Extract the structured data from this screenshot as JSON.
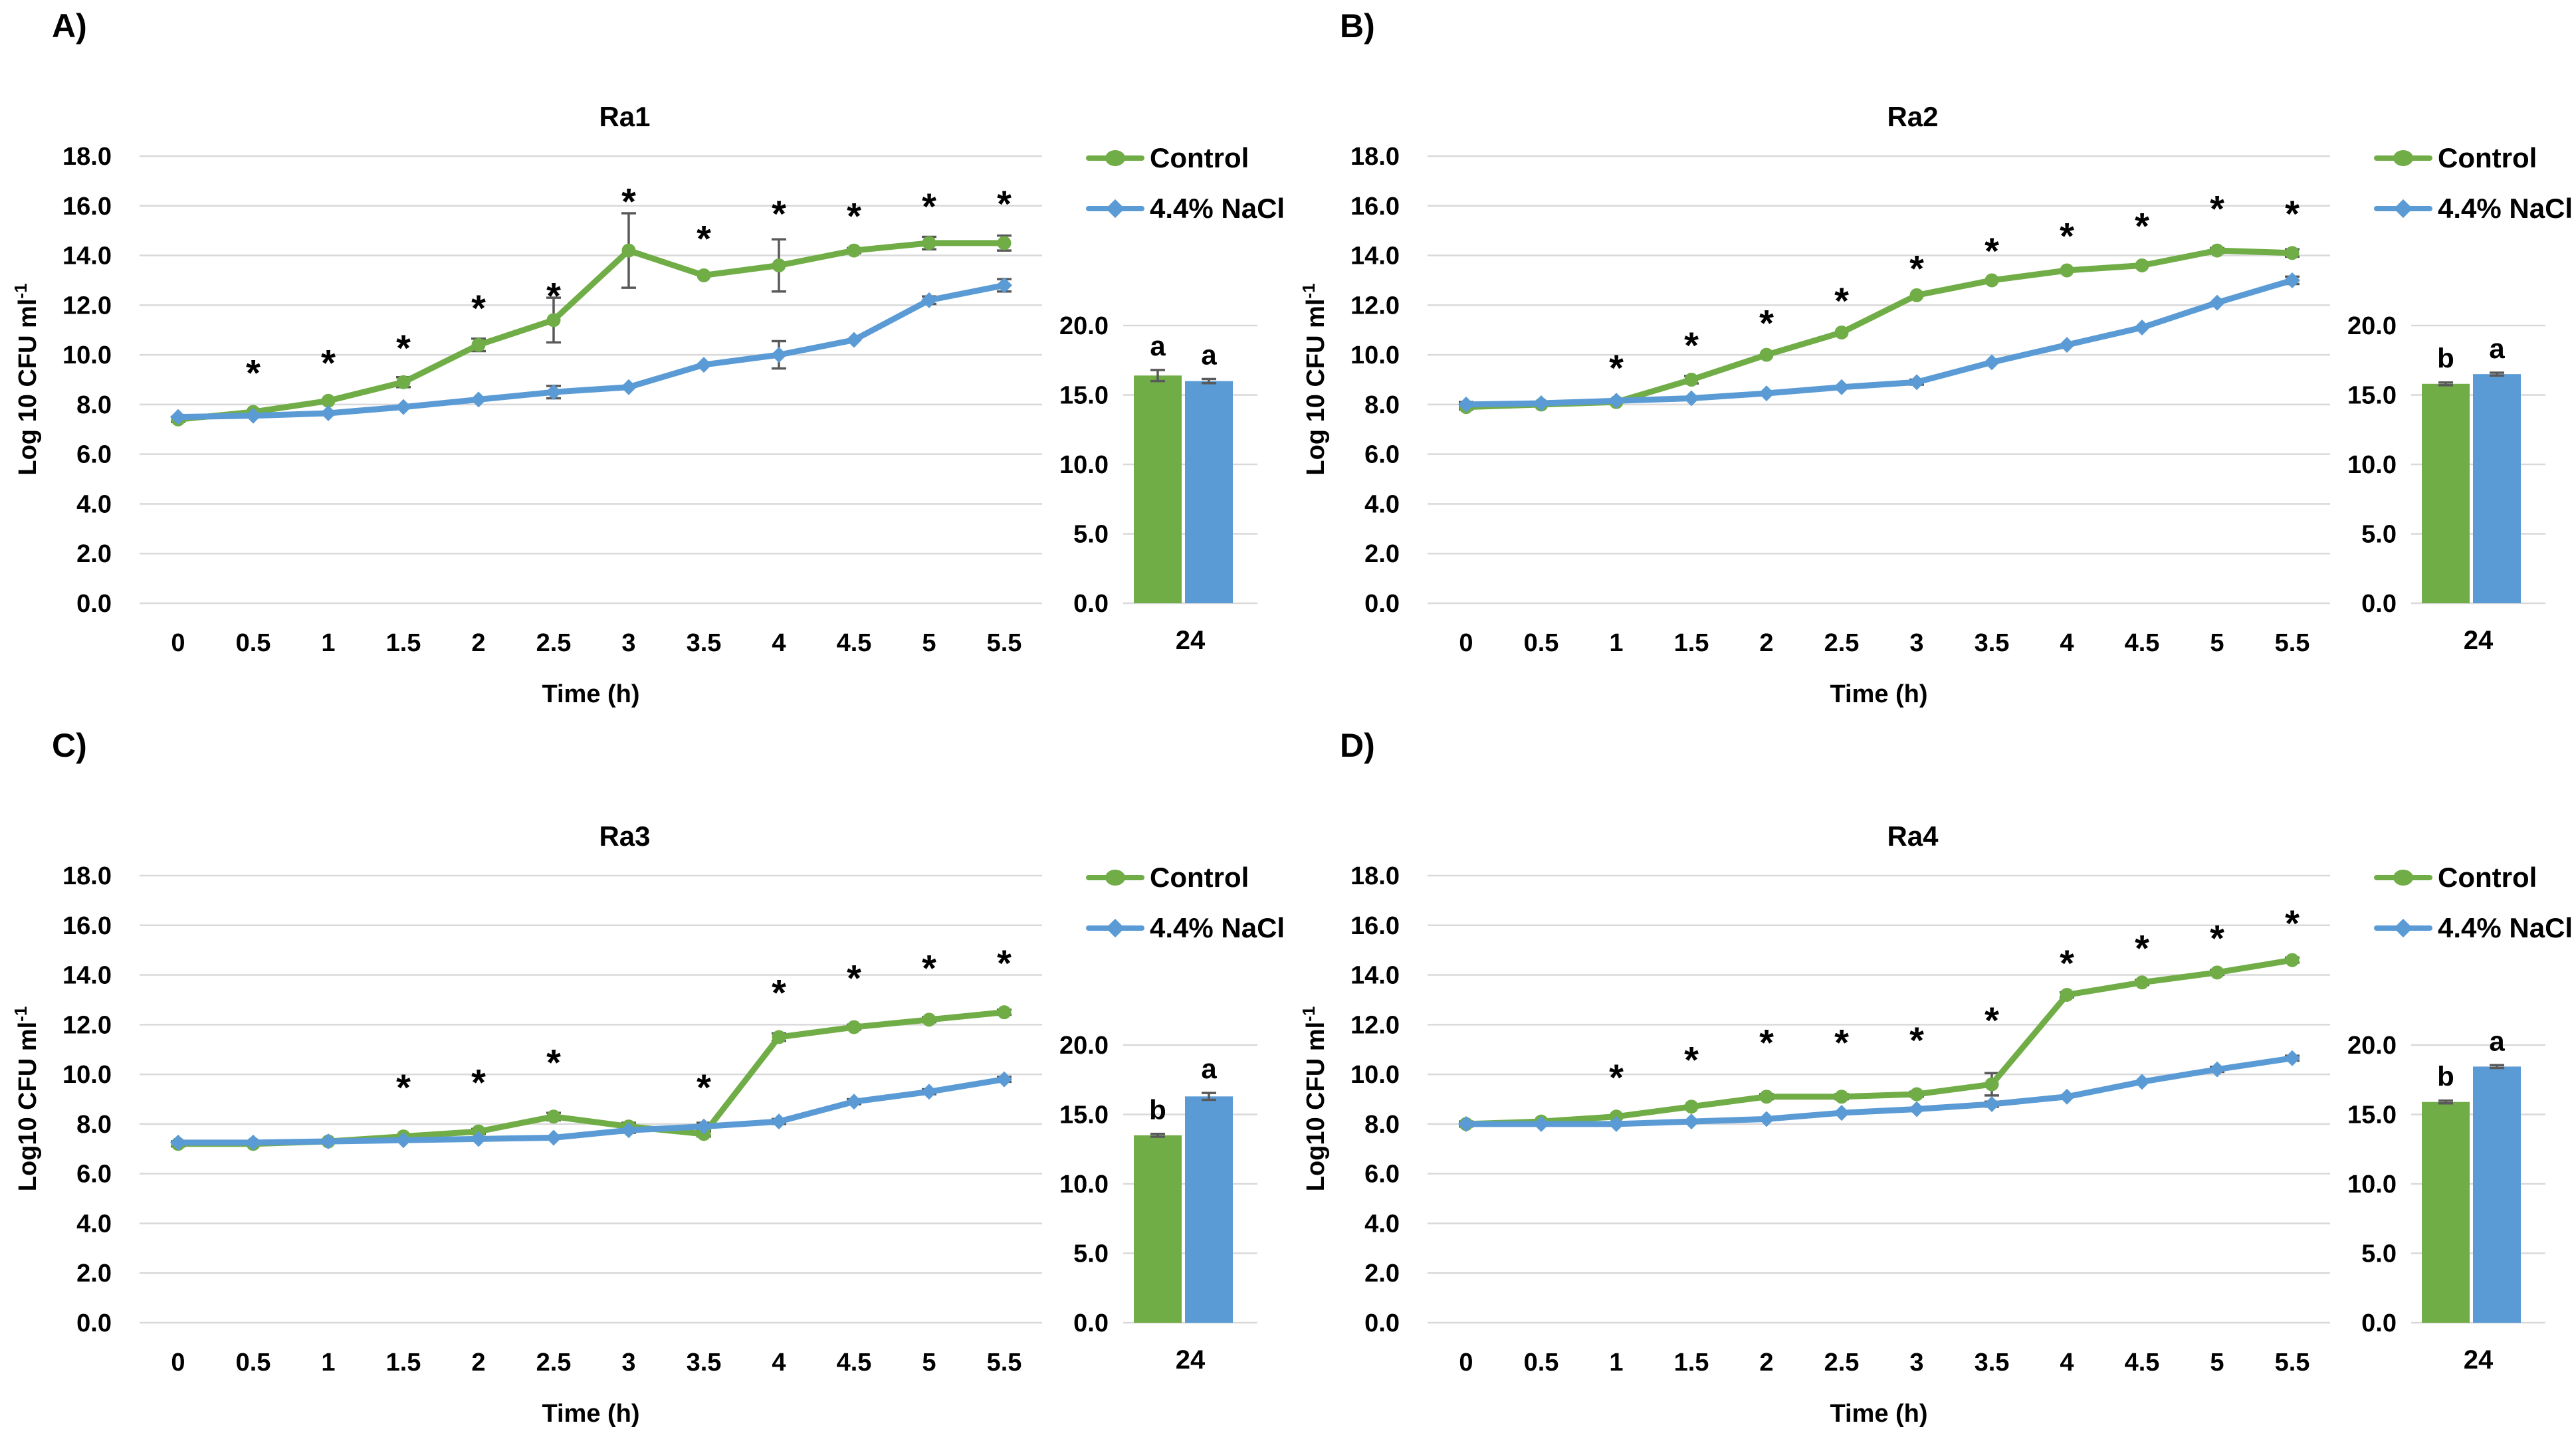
{
  "figure": {
    "accent_green": "#70AD47",
    "accent_blue": "#5B9BD5",
    "gridline_color": "#D9D9D9",
    "error_bar_color": "#595959",
    "text_color": "#000000",
    "background": "#FFFFFF"
  },
  "chart_data": [
    {
      "type": "line",
      "panel_label": "A)",
      "title": "Ra1",
      "xlabel": "Time (h)",
      "ylabel_base": "Log 10 CFU ml",
      "ylabel_sup": "-1",
      "legend": [
        "Control",
        "4.4% NaCl"
      ],
      "x_categories": [
        "0",
        "0.5",
        "1",
        "1.5",
        "2",
        "2.5",
        "3",
        "3.5",
        "4",
        "4.5",
        "5",
        "5.5"
      ],
      "line_axis": {
        "ymin": 0,
        "ymax": 18,
        "ystep": 2,
        "grid": true
      },
      "series": [
        {
          "name": "Control",
          "color": "green",
          "marker": "circle",
          "values": [
            7.4,
            7.7,
            8.15,
            8.9,
            10.4,
            11.4,
            14.2,
            13.2,
            13.6,
            14.2,
            14.5,
            14.5
          ],
          "err": [
            0.1,
            0,
            0,
            0.2,
            0.25,
            0.9,
            1.5,
            0,
            1.05,
            0.1,
            0.25,
            0.3
          ]
        },
        {
          "name": "4.4% NaCl",
          "color": "blue",
          "marker": "diamond",
          "values": [
            7.5,
            7.55,
            7.65,
            7.9,
            8.2,
            8.5,
            8.7,
            9.6,
            10.0,
            10.6,
            12.2,
            12.8
          ],
          "err": [
            0,
            0,
            0,
            0,
            0,
            0.25,
            0,
            0,
            0.55,
            0,
            0.15,
            0.25
          ]
        }
      ],
      "asterisks": [
        {
          "x": "0.5",
          "y": 9.3
        },
        {
          "x": "1",
          "y": 9.7
        },
        {
          "x": "1.5",
          "y": 10.3
        },
        {
          "x": "2",
          "y": 11.9
        },
        {
          "x": "2.5",
          "y": 12.4
        },
        {
          "x": "3",
          "y": 16.2
        },
        {
          "x": "3.5",
          "y": 14.7
        },
        {
          "x": "4",
          "y": 15.7
        },
        {
          "x": "4.5",
          "y": 15.6
        },
        {
          "x": "5",
          "y": 16.0
        },
        {
          "x": "5.5",
          "y": 16.1
        }
      ],
      "bar": {
        "category": "24",
        "bar_axis": {
          "ymin": 0,
          "ymax": 20,
          "ystep": 5,
          "grid": true
        },
        "values": [
          {
            "name": "Control",
            "color": "green",
            "value": 16.4,
            "err": 0.4,
            "letter": "a"
          },
          {
            "name": "4.4% NaCl",
            "color": "blue",
            "value": 16.0,
            "err": 0.15,
            "letter": "a"
          }
        ]
      }
    },
    {
      "type": "line",
      "panel_label": "B)",
      "title": "Ra2",
      "xlabel": "Time (h)",
      "ylabel_base": "Log 10 CFU ml",
      "ylabel_sup": "-1",
      "legend": [
        "Control",
        "4.4% NaCl"
      ],
      "x_categories": [
        "0",
        "0.5",
        "1",
        "1.5",
        "2",
        "2.5",
        "3",
        "3.5",
        "4",
        "4.5",
        "5",
        "5.5"
      ],
      "line_axis": {
        "ymin": 0,
        "ymax": 18,
        "ystep": 2,
        "grid": true
      },
      "series": [
        {
          "name": "Control",
          "color": "green",
          "marker": "circle",
          "values": [
            7.9,
            8.0,
            8.1,
            9.0,
            10.0,
            10.9,
            12.4,
            13.0,
            13.4,
            13.6,
            14.2,
            14.1
          ],
          "err": [
            0.1,
            0,
            0,
            0.15,
            0,
            0,
            0,
            0,
            0,
            0,
            0.1,
            0.15
          ]
        },
        {
          "name": "4.4% NaCl",
          "color": "blue",
          "marker": "diamond",
          "values": [
            8.0,
            8.05,
            8.15,
            8.25,
            8.45,
            8.7,
            8.9,
            9.7,
            10.4,
            11.1,
            12.1,
            13.0
          ],
          "err": [
            0.1,
            0,
            0,
            0,
            0,
            0,
            0.1,
            0,
            0,
            0,
            0,
            0.15
          ]
        }
      ],
      "asterisks": [
        {
          "x": "1",
          "y": 9.5
        },
        {
          "x": "1.5",
          "y": 10.4
        },
        {
          "x": "2",
          "y": 11.3
        },
        {
          "x": "2.5",
          "y": 12.2
        },
        {
          "x": "3",
          "y": 13.5
        },
        {
          "x": "3.5",
          "y": 14.2
        },
        {
          "x": "4",
          "y": 14.8
        },
        {
          "x": "4.5",
          "y": 15.2
        },
        {
          "x": "5",
          "y": 15.9
        },
        {
          "x": "5.5",
          "y": 15.7
        }
      ],
      "bar": {
        "category": "24",
        "bar_axis": {
          "ymin": 0,
          "ymax": 20,
          "ystep": 5,
          "grid": true
        },
        "values": [
          {
            "name": "Control",
            "color": "green",
            "value": 15.8,
            "err": 0.1,
            "letter": "b"
          },
          {
            "name": "4.4% NaCl",
            "color": "blue",
            "value": 16.5,
            "err": 0.1,
            "letter": "a"
          }
        ]
      }
    },
    {
      "type": "line",
      "panel_label": "C)",
      "title": "Ra3",
      "xlabel": "Time (h)",
      "ylabel_base": "Log10 CFU ml",
      "ylabel_sup": "-1",
      "legend": [
        "Control",
        "4.4% NaCl"
      ],
      "x_categories": [
        "0",
        "0.5",
        "1",
        "1.5",
        "2",
        "2.5",
        "3",
        "3.5",
        "4",
        "4.5",
        "5",
        "5.5"
      ],
      "line_axis": {
        "ymin": 0,
        "ymax": 18,
        "ystep": 2,
        "grid": true
      },
      "series": [
        {
          "name": "Control",
          "color": "green",
          "marker": "circle",
          "values": [
            7.2,
            7.2,
            7.3,
            7.5,
            7.7,
            8.3,
            7.9,
            7.6,
            11.5,
            11.9,
            12.2,
            12.5
          ],
          "err": [
            0.1,
            0,
            0,
            0,
            0.1,
            0.15,
            0.15,
            0.1,
            0.15,
            0.1,
            0.1,
            0.1
          ]
        },
        {
          "name": "4.4% NaCl",
          "color": "blue",
          "marker": "diamond",
          "values": [
            7.25,
            7.25,
            7.3,
            7.35,
            7.4,
            7.45,
            7.75,
            7.9,
            8.1,
            8.9,
            9.3,
            9.8
          ],
          "err": [
            0,
            0,
            0,
            0,
            0,
            0,
            0.1,
            0.15,
            0.1,
            0.1,
            0.1,
            0.1
          ]
        }
      ],
      "asterisks": [
        {
          "x": "1.5",
          "y": 9.5
        },
        {
          "x": "2",
          "y": 9.7
        },
        {
          "x": "2.5",
          "y": 10.5
        },
        {
          "x": "3.5",
          "y": 9.5
        },
        {
          "x": "4",
          "y": 13.3
        },
        {
          "x": "4.5",
          "y": 13.9
        },
        {
          "x": "5",
          "y": 14.3
        },
        {
          "x": "5.5",
          "y": 14.5
        }
      ],
      "bar": {
        "category": "24",
        "bar_axis": {
          "ymin": 0,
          "ymax": 20,
          "ystep": 5,
          "grid": true
        },
        "values": [
          {
            "name": "Control",
            "color": "green",
            "value": 13.5,
            "err": 0.1,
            "letter": "b"
          },
          {
            "name": "4.4% NaCl",
            "color": "blue",
            "value": 16.3,
            "err": 0.25,
            "letter": "a"
          }
        ]
      }
    },
    {
      "type": "line",
      "panel_label": "D)",
      "title": "Ra4",
      "xlabel": "Time (h)",
      "ylabel_base": "Log10 CFU ml",
      "ylabel_sup": "-1",
      "legend": [
        "Control",
        "4.4% NaCl"
      ],
      "x_categories": [
        "0",
        "0.5",
        "1",
        "1.5",
        "2",
        "2.5",
        "3",
        "3.5",
        "4",
        "4.5",
        "5",
        "5.5"
      ],
      "line_axis": {
        "ymin": 0,
        "ymax": 18,
        "ystep": 2,
        "grid": true
      },
      "series": [
        {
          "name": "Control",
          "color": "green",
          "marker": "circle",
          "values": [
            8.0,
            8.1,
            8.3,
            8.7,
            9.1,
            9.1,
            9.2,
            9.6,
            13.2,
            13.7,
            14.1,
            14.6
          ],
          "err": [
            0.1,
            0,
            0,
            0,
            0.1,
            0.1,
            0.1,
            0.45,
            0.1,
            0.1,
            0.1,
            0.1
          ]
        },
        {
          "name": "4.4% NaCl",
          "color": "blue",
          "marker": "diamond",
          "values": [
            8.0,
            8.0,
            8.0,
            8.1,
            8.2,
            8.45,
            8.6,
            8.8,
            9.1,
            9.7,
            10.2,
            10.65
          ],
          "err": [
            0,
            0,
            0,
            0,
            0,
            0,
            0,
            0.1,
            0,
            0,
            0.1,
            0.1
          ]
        }
      ],
      "asterisks": [
        {
          "x": "1",
          "y": 9.9
        },
        {
          "x": "1.5",
          "y": 10.6
        },
        {
          "x": "2",
          "y": 11.3
        },
        {
          "x": "2.5",
          "y": 11.3
        },
        {
          "x": "3",
          "y": 11.4
        },
        {
          "x": "3.5",
          "y": 12.2
        },
        {
          "x": "4",
          "y": 14.5
        },
        {
          "x": "4.5",
          "y": 15.1
        },
        {
          "x": "5",
          "y": 15.5
        },
        {
          "x": "5.5",
          "y": 16.1
        }
      ],
      "bar": {
        "category": "24",
        "bar_axis": {
          "ymin": 0,
          "ymax": 20,
          "ystep": 5,
          "grid": true
        },
        "values": [
          {
            "name": "Control",
            "color": "green",
            "value": 15.9,
            "err": 0.1,
            "letter": "b"
          },
          {
            "name": "4.4% NaCl",
            "color": "blue",
            "value": 18.45,
            "err": 0.1,
            "letter": "a"
          }
        ]
      }
    }
  ]
}
